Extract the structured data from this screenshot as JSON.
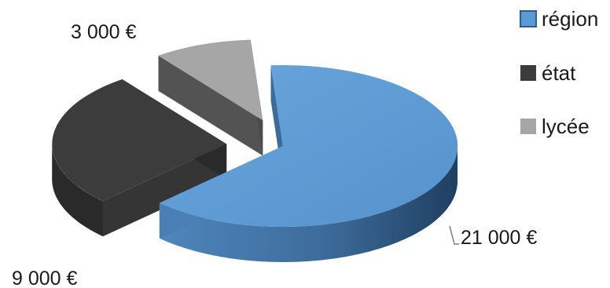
{
  "chart_data": {
    "type": "pie",
    "style": "3d-exploded",
    "categories": [
      "région",
      "état",
      "lycée"
    ],
    "values": [
      21000,
      9000,
      3000
    ],
    "data_labels": [
      "21 000 €",
      "9 000 €",
      "3 000 €"
    ],
    "colors": {
      "région": "#5b9bd5",
      "état": "#3c3c3c",
      "lycée": "#a6a6a6"
    },
    "legend_position": "right",
    "title": ""
  }
}
